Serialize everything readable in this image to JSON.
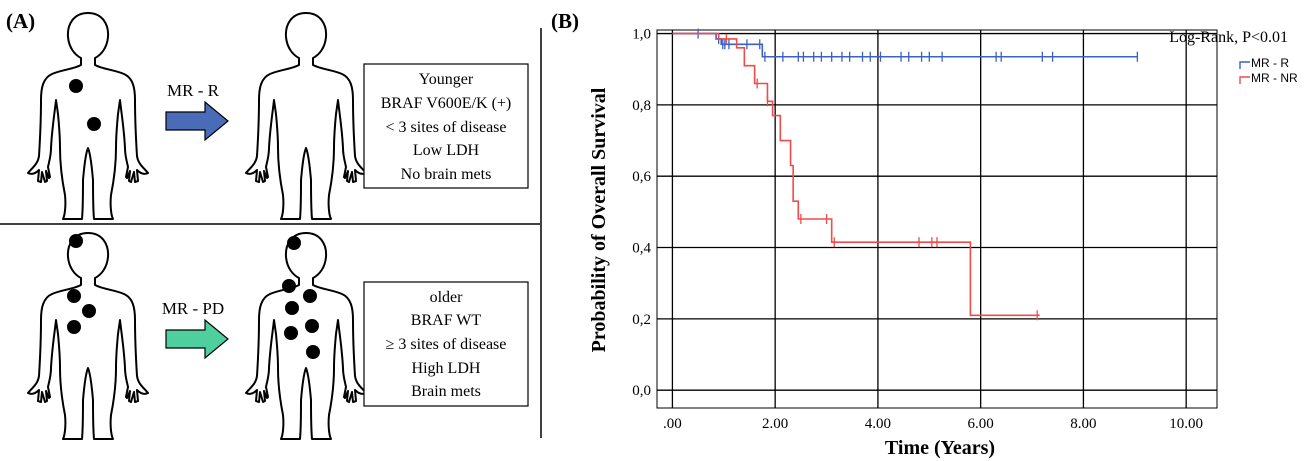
{
  "panel_a": {
    "label": "(A)",
    "top_row": {
      "arrow_label": "MR - R",
      "arrow_color": "#4a6cb8",
      "box_lines": [
        "Younger",
        "BRAF V600E/K (+)",
        "< 3 sites of disease",
        "Low LDH",
        "No brain mets"
      ]
    },
    "bottom_row": {
      "arrow_label": "MR - PD",
      "arrow_color": "#4fcf9f",
      "box_lines": [
        "older",
        "BRAF WT",
        "≥ 3 sites of disease",
        "High LDH",
        "Brain mets"
      ]
    }
  },
  "panel_b": {
    "label": "(B)"
  },
  "chart_data": {
    "type": "line",
    "xlabel": "Time (Years)",
    "ylabel": "Probability of Overall Survival",
    "xlim": [
      -0.3,
      10.6
    ],
    "ylim": [
      -0.05,
      1.01
    ],
    "x_ticks": [
      0,
      2,
      4,
      6,
      8,
      10
    ],
    "x_tick_labels": [
      ".00",
      "2.00",
      "4.00",
      "6.00",
      "8.00",
      "10.00"
    ],
    "y_ticks": [
      0,
      0.2,
      0.4,
      0.6,
      0.8,
      1.0
    ],
    "y_tick_labels": [
      "0,0",
      "0,2",
      "0,4",
      "0,6",
      "0,8",
      "1,0"
    ],
    "grid": true,
    "legend_position": "right",
    "annotation": "Log-Rank, P<0.01",
    "series": [
      {
        "name": "MR - R",
        "color": "#3a62c4",
        "steps": [
          [
            0,
            1.0
          ],
          [
            0.85,
            0.985
          ],
          [
            0.95,
            0.97
          ],
          [
            1.75,
            0.935
          ],
          [
            9.05,
            0.935
          ]
        ],
        "censored": [
          [
            0.5,
            1.0
          ],
          [
            0.9,
            0.985
          ],
          [
            0.98,
            0.97
          ],
          [
            1.02,
            0.97
          ],
          [
            1.1,
            0.97
          ],
          [
            1.45,
            0.97
          ],
          [
            1.7,
            0.97
          ],
          [
            1.8,
            0.935
          ],
          [
            2.15,
            0.935
          ],
          [
            2.45,
            0.935
          ],
          [
            2.55,
            0.935
          ],
          [
            2.75,
            0.935
          ],
          [
            2.9,
            0.935
          ],
          [
            3.1,
            0.935
          ],
          [
            3.3,
            0.935
          ],
          [
            3.45,
            0.935
          ],
          [
            3.7,
            0.935
          ],
          [
            3.85,
            0.935
          ],
          [
            4.05,
            0.935
          ],
          [
            4.45,
            0.935
          ],
          [
            4.6,
            0.935
          ],
          [
            4.85,
            0.935
          ],
          [
            5.0,
            0.935
          ],
          [
            5.25,
            0.935
          ],
          [
            6.3,
            0.935
          ],
          [
            6.4,
            0.935
          ],
          [
            7.2,
            0.935
          ],
          [
            7.4,
            0.935
          ],
          [
            9.05,
            0.935
          ]
        ]
      },
      {
        "name": "MR - NR",
        "color": "#ef4b4b",
        "steps": [
          [
            0,
            1.0
          ],
          [
            0.9,
            0.985
          ],
          [
            1.25,
            0.96
          ],
          [
            1.4,
            0.91
          ],
          [
            1.6,
            0.86
          ],
          [
            1.85,
            0.81
          ],
          [
            1.95,
            0.77
          ],
          [
            2.1,
            0.7
          ],
          [
            2.3,
            0.63
          ],
          [
            2.35,
            0.53
          ],
          [
            2.45,
            0.48
          ],
          [
            3.1,
            0.415
          ],
          [
            5.8,
            0.21
          ],
          [
            7.15,
            0.21
          ]
        ],
        "censored": [
          [
            1.05,
            0.985
          ],
          [
            1.65,
            0.86
          ],
          [
            1.85,
            0.81
          ],
          [
            2.5,
            0.48
          ],
          [
            3.0,
            0.48
          ],
          [
            3.15,
            0.415
          ],
          [
            4.8,
            0.415
          ],
          [
            5.05,
            0.415
          ],
          [
            5.15,
            0.415
          ],
          [
            7.1,
            0.21
          ]
        ]
      }
    ]
  }
}
